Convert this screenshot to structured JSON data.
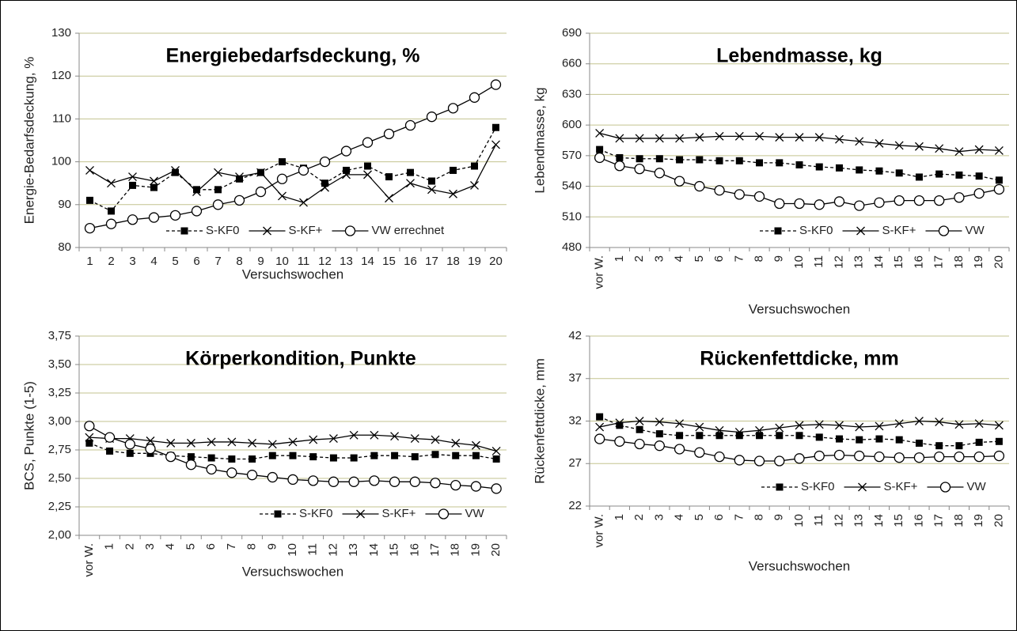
{
  "chart_data": [
    {
      "type": "line",
      "title": "Energiebedarfsdeckung, %",
      "x_label": "Versuchswochen",
      "y_label": "Energie-Bedarfsdeckung, %",
      "categories": [
        "1",
        "2",
        "3",
        "4",
        "5",
        "6",
        "7",
        "8",
        "9",
        "10",
        "11",
        "12",
        "13",
        "14",
        "15",
        "16",
        "17",
        "18",
        "19",
        "20"
      ],
      "ylim": [
        80,
        130
      ],
      "yticks": [
        80,
        90,
        100,
        110,
        120,
        130
      ],
      "grid": true,
      "legend": "bottom",
      "series": [
        {
          "name": "S-KF0",
          "color": "#000000",
          "dash": true,
          "marker": "square",
          "values": [
            91,
            88.5,
            94.5,
            94,
            97.5,
            93.5,
            93.5,
            96,
            97.5,
            100,
            98.5,
            95,
            98,
            99,
            96.5,
            97.5,
            95.5,
            98,
            99,
            108
          ]
        },
        {
          "name": "S-KF+",
          "color": "#000000",
          "dash": false,
          "marker": "x",
          "values": [
            98,
            95,
            96.5,
            95.5,
            98,
            93,
            97.5,
            96.5,
            97.5,
            92,
            90.5,
            94,
            97,
            97,
            91.5,
            95,
            93.5,
            92.5,
            94.5,
            104
          ]
        },
        {
          "name": "VW errechnet",
          "color": "#000000",
          "dash": false,
          "marker": "circle",
          "values": [
            84.5,
            85.5,
            86.5,
            87,
            87.5,
            88.5,
            90,
            91,
            93,
            96,
            98,
            100,
            102.5,
            104.5,
            106.5,
            108.5,
            110.5,
            112.5,
            115,
            118
          ]
        }
      ]
    },
    {
      "type": "line",
      "title": "Lebendmasse, kg",
      "x_label": "Versuchswochen",
      "y_label": "Lebendmasse, kg",
      "categories": [
        "vor W.",
        "1",
        "2",
        "3",
        "4",
        "5",
        "6",
        "7",
        "8",
        "9",
        "10",
        "11",
        "12",
        "13",
        "14",
        "15",
        "16",
        "17",
        "18",
        "19",
        "20"
      ],
      "ylim": [
        480,
        690
      ],
      "yticks": [
        480,
        510,
        540,
        570,
        600,
        630,
        660,
        690
      ],
      "grid": true,
      "legend": "bottom",
      "series": [
        {
          "name": "S-KF0",
          "color": "#000000",
          "dash": true,
          "marker": "square",
          "values": [
            576,
            568,
            567,
            567,
            566,
            566,
            565,
            565,
            563,
            563,
            561,
            559,
            558,
            556,
            555,
            553,
            549,
            552,
            551,
            550,
            546
          ]
        },
        {
          "name": "S-KF+",
          "color": "#000000",
          "dash": false,
          "marker": "x",
          "values": [
            592,
            587,
            587,
            587,
            587,
            588,
            589,
            589,
            589,
            588,
            588,
            588,
            586,
            584,
            582,
            580,
            579,
            577,
            574,
            576,
            575
          ]
        },
        {
          "name": "VW",
          "color": "#000000",
          "dash": false,
          "marker": "circle",
          "values": [
            568,
            560,
            557,
            553,
            545,
            540,
            536,
            532,
            530,
            523,
            523,
            522,
            525,
            521,
            524,
            526,
            526,
            526,
            529,
            533,
            537
          ]
        }
      ]
    },
    {
      "type": "line",
      "title": "Körperkondition, Punkte",
      "x_label": "Versuchswochen",
      "y_label": "BCS, Punkte (1-5)",
      "categories": [
        "vor W.",
        "1",
        "2",
        "3",
        "4",
        "5",
        "6",
        "7",
        "8",
        "9",
        "10",
        "11",
        "12",
        "13",
        "14",
        "15",
        "16",
        "17",
        "18",
        "19",
        "20"
      ],
      "ylim": [
        2,
        3.75
      ],
      "yticks": [
        {
          "value": 2,
          "label": "2,00"
        },
        {
          "value": 2.25,
          "label": "2,25"
        },
        {
          "value": 2.5,
          "label": "2,50"
        },
        {
          "value": 2.75,
          "label": "2,75"
        },
        {
          "value": 3,
          "label": "3,00"
        },
        {
          "value": 3.25,
          "label": "3,25"
        },
        {
          "value": 3.5,
          "label": "3,50"
        },
        {
          "value": 3.75,
          "label": "3,75"
        }
      ],
      "grid": true,
      "legend": "bottom",
      "series": [
        {
          "name": "S-KF0",
          "color": "#000000",
          "dash": true,
          "marker": "square",
          "values": [
            2.81,
            2.74,
            2.72,
            2.72,
            2.7,
            2.69,
            2.68,
            2.67,
            2.67,
            2.7,
            2.7,
            2.69,
            2.68,
            2.68,
            2.7,
            2.7,
            2.69,
            2.71,
            2.7,
            2.7,
            2.67
          ]
        },
        {
          "name": "S-KF+",
          "color": "#000000",
          "dash": false,
          "marker": "x",
          "values": [
            2.86,
            2.85,
            2.85,
            2.83,
            2.81,
            2.81,
            2.82,
            2.82,
            2.81,
            2.8,
            2.82,
            2.84,
            2.85,
            2.88,
            2.88,
            2.87,
            2.85,
            2.84,
            2.81,
            2.79,
            2.74
          ]
        },
        {
          "name": "VW",
          "color": "#000000",
          "dash": false,
          "marker": "circle",
          "values": [
            2.96,
            2.86,
            2.8,
            2.76,
            2.69,
            2.62,
            2.58,
            2.55,
            2.53,
            2.51,
            2.49,
            2.48,
            2.47,
            2.47,
            2.48,
            2.47,
            2.47,
            2.46,
            2.44,
            2.43,
            2.41
          ]
        }
      ]
    },
    {
      "type": "line",
      "title": "Rückenfettdicke, mm",
      "x_label": "Versuchswochen",
      "y_label": "Rückenfettdicke, mm",
      "categories": [
        "vor W.",
        "1",
        "2",
        "3",
        "4",
        "5",
        "6",
        "7",
        "8",
        "9",
        "10",
        "11",
        "12",
        "13",
        "14",
        "15",
        "16",
        "17",
        "18",
        "19",
        "20"
      ],
      "ylim": [
        22,
        42
      ],
      "yticks": [
        22,
        27,
        32,
        37,
        42
      ],
      "grid": true,
      "legend": "bottom",
      "series": [
        {
          "name": "S-KF0",
          "color": "#000000",
          "dash": true,
          "marker": "square",
          "values": [
            32.5,
            31.5,
            31.0,
            30.5,
            30.3,
            30.3,
            30.3,
            30.3,
            30.3,
            30.3,
            30.3,
            30.1,
            29.9,
            29.8,
            29.9,
            29.8,
            29.4,
            29.1,
            29.1,
            29.5,
            29.6
          ]
        },
        {
          "name": "S-KF+",
          "color": "#000000",
          "dash": false,
          "marker": "x",
          "values": [
            31.3,
            31.8,
            32.0,
            31.9,
            31.7,
            31.3,
            30.9,
            30.7,
            30.9,
            31.2,
            31.5,
            31.6,
            31.5,
            31.3,
            31.4,
            31.7,
            32.0,
            31.9,
            31.6,
            31.7,
            31.5
          ]
        },
        {
          "name": "VW",
          "color": "#000000",
          "dash": false,
          "marker": "circle",
          "values": [
            29.9,
            29.6,
            29.3,
            29.1,
            28.7,
            28.3,
            27.8,
            27.4,
            27.3,
            27.3,
            27.6,
            27.9,
            28.0,
            27.9,
            27.8,
            27.7,
            27.7,
            27.8,
            27.8,
            27.8,
            27.9
          ]
        }
      ]
    }
  ]
}
